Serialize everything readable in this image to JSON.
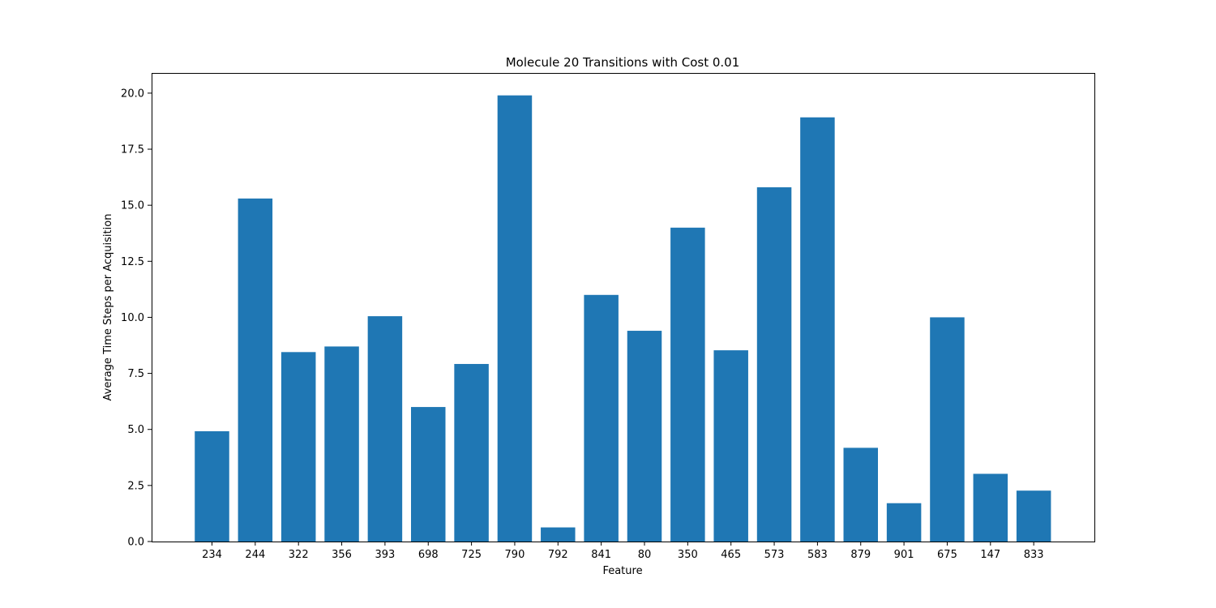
{
  "chart_data": {
    "type": "bar",
    "title": "Molecule 20 Transitions with Cost 0.01",
    "xlabel": "Feature",
    "ylabel": "Average Time Steps per Acquisition",
    "categories": [
      "234",
      "244",
      "322",
      "356",
      "393",
      "698",
      "725",
      "790",
      "792",
      "841",
      "80",
      "350",
      "465",
      "573",
      "583",
      "879",
      "901",
      "675",
      "147",
      "833"
    ],
    "values": [
      4.92,
      15.3,
      8.45,
      8.7,
      10.05,
      6.0,
      7.92,
      19.9,
      0.63,
      11.0,
      9.4,
      14.0,
      8.53,
      15.8,
      18.92,
      4.18,
      1.71,
      10.0,
      3.02,
      2.27
    ],
    "ylim": [
      0,
      20.9
    ],
    "yticks": [
      0,
      2.5,
      5,
      7.5,
      10,
      12.5,
      15,
      17.5,
      20
    ],
    "ytick_labels": [
      "0.0",
      "2.5",
      "5.0",
      "7.5",
      "10.0",
      "12.5",
      "15.0",
      "17.5",
      "20.0"
    ],
    "grid": false,
    "bar_color": "#1f77b4"
  }
}
